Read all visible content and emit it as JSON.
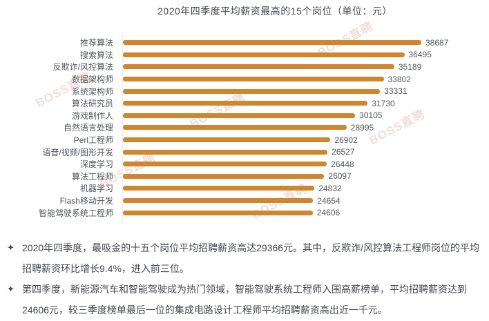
{
  "watermark": {
    "text": "BOSS直聘",
    "color": "#cb9489"
  },
  "chart_data": {
    "type": "bar",
    "orientation": "horizontal",
    "title": "2020年四季度平均薪资最高的15个岗位（单位：元）",
    "categories": [
      "推荐算法",
      "搜索算法",
      "反欺诈/风控算法",
      "数据架构师",
      "系统架构师",
      "算法研究员",
      "游戏制作人",
      "自然语言处理",
      "Perl工程师",
      "语音/视频/图形开发",
      "深度学习",
      "算法工程师",
      "机器学习",
      "Flash移动开发",
      "智能驾驶系统工程师"
    ],
    "values": [
      38687,
      36495,
      35189,
      33802,
      33331,
      31730,
      30105,
      28995,
      26902,
      26527,
      26448,
      26097,
      24832,
      24654,
      24606
    ],
    "value_labels_shown": true,
    "bar_color": "#d0862e",
    "xlim": [
      0,
      38687
    ],
    "grid": false,
    "legend": false
  },
  "notes": {
    "bullet_marker": "✦",
    "items": [
      {
        "text": "2020年四季度，最吸金的十五个岗位平均招聘薪资高达29366元。其中，反欺诈/风控算法工程师岗位的平均招聘薪资环比增长9.4%，进入前三位。"
      },
      {
        "text": "第四季度，新能源汽车和智能驾驶成为热门领域，智能驾驶系统工程师入围高薪榜单，平均招聘薪资达到24606元，较三季度榜单最后一位的集成电路设计工程师平均招聘薪资高出近一千元。"
      }
    ]
  }
}
